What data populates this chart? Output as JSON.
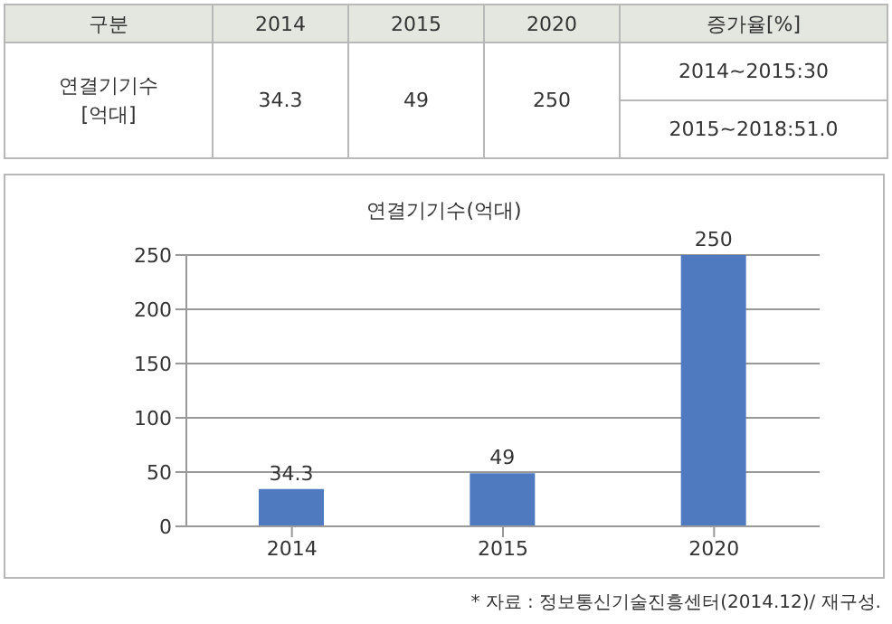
{
  "chart_data": {
    "type": "bar",
    "title": "연결기기수(억대)",
    "categories": [
      "2014",
      "2015",
      "2020"
    ],
    "values": [
      34.3,
      49,
      250
    ],
    "value_labels": [
      "34.3",
      "49",
      "250"
    ],
    "color": "#4f7ac0",
    "ylim": [
      0,
      250
    ],
    "yticks": [
      0,
      50,
      100,
      150,
      200,
      250
    ],
    "grid": "y",
    "annotations": [
      "구분",
      "연결기기수\n[억대]",
      "증가율[%]",
      "2014~2015:30",
      "2015~2018:51.0",
      "* 자료 : 정보통신기술진흥센터(2014.12)/ 재구성."
    ]
  }
}
